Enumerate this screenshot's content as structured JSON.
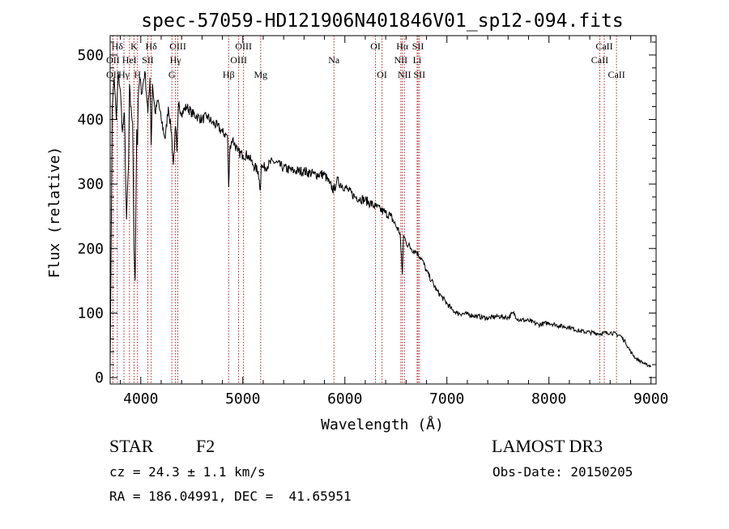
{
  "chart_data": {
    "type": "line",
    "title": "spec-57059-HD121906N401846V01_sp12-094.fits",
    "xlabel": "Wavelength (Å)",
    "ylabel": "Flux (relative)",
    "xlim": [
      3700,
      9050
    ],
    "ylim": [
      -10,
      530
    ],
    "xticks": [
      4000,
      5000,
      6000,
      7000,
      8000,
      9000
    ],
    "yticks": [
      0,
      100,
      200,
      300,
      400,
      500
    ],
    "grid": false,
    "series": [
      {
        "name": "flux",
        "x": [
          3700,
          3720,
          3740,
          3760,
          3780,
          3800,
          3820,
          3840,
          3860,
          3880,
          3890,
          3900,
          3920,
          3934,
          3945,
          3960,
          3968,
          3975,
          3990,
          4010,
          4040,
          4070,
          4090,
          4102,
          4115,
          4140,
          4170,
          4200,
          4240,
          4270,
          4300,
          4320,
          4340,
          4355,
          4370,
          4400,
          4450,
          4500,
          4550,
          4600,
          4650,
          4700,
          4750,
          4800,
          4850,
          4861,
          4875,
          4900,
          4950,
          5000,
          5050,
          5100,
          5150,
          5172,
          5180,
          5200,
          5300,
          5400,
          5500,
          5600,
          5700,
          5800,
          5850,
          5893,
          5920,
          6000,
          6100,
          6200,
          6300,
          6400,
          6450,
          6500,
          6540,
          6563,
          6575,
          6600,
          6650,
          6700,
          6750,
          6800,
          6850,
          6900,
          6950,
          7000,
          7050,
          7100,
          7200,
          7300,
          7400,
          7500,
          7600,
          7650,
          7700,
          7800,
          7900,
          8000,
          8100,
          8200,
          8300,
          8400,
          8500,
          8600,
          8700,
          8750,
          8800,
          8850,
          8900,
          8950,
          9000
        ],
        "values": [
          10,
          420,
          465,
          400,
          470,
          445,
          380,
          410,
          245,
          330,
          455,
          420,
          395,
          200,
          150,
          385,
          360,
          430,
          465,
          440,
          475,
          410,
          465,
          360,
          455,
          410,
          430,
          400,
          370,
          420,
          380,
          330,
          390,
          350,
          425,
          410,
          420,
          410,
          405,
          400,
          405,
          395,
          390,
          380,
          375,
          295,
          360,
          370,
          350,
          345,
          345,
          330,
          320,
          290,
          330,
          325,
          335,
          325,
          320,
          320,
          315,
          315,
          300,
          290,
          305,
          295,
          280,
          275,
          265,
          255,
          250,
          235,
          225,
          160,
          220,
          210,
          200,
          195,
          185,
          165,
          150,
          135,
          125,
          115,
          105,
          100,
          98,
          95,
          92,
          95,
          93,
          100,
          90,
          88,
          82,
          85,
          80,
          78,
          72,
          70,
          68,
          70,
          65,
          55,
          40,
          30,
          25,
          20,
          18
        ]
      }
    ],
    "line_color": "#000000",
    "marker_color": "#b22222",
    "line_markers": [
      {
        "label": "Hδ",
        "x": 3770,
        "row": 1
      },
      {
        "label": "OII",
        "x": 3727,
        "row": 2
      },
      {
        "label": "OII",
        "x": 3727,
        "row": 3
      },
      {
        "label": "K",
        "x": 3934,
        "row": 1
      },
      {
        "label": "HeI",
        "x": 3889,
        "row": 2
      },
      {
        "label": "Hγ",
        "x": 3835,
        "row": 3
      },
      {
        "label": "SII",
        "x": 4069,
        "row": 2
      },
      {
        "label": "H",
        "x": 3968,
        "row": 3
      },
      {
        "label": "Hδ",
        "x": 4102,
        "row": 1
      },
      {
        "label": "OIII",
        "x": 4363,
        "row": 1
      },
      {
        "label": "Hγ",
        "x": 4340,
        "row": 2
      },
      {
        "label": "G",
        "x": 4305,
        "row": 3
      },
      {
        "label": "Hβ",
        "x": 4861,
        "row": 3
      },
      {
        "label": "OIII",
        "x": 5007,
        "row": 1
      },
      {
        "label": "OIII",
        "x": 4959,
        "row": 2
      },
      {
        "label": "Mg",
        "x": 5175,
        "row": 3
      },
      {
        "label": "Na",
        "x": 5893,
        "row": 2
      },
      {
        "label": "OI",
        "x": 6300,
        "row": 1
      },
      {
        "label": "OI",
        "x": 6364,
        "row": 3
      },
      {
        "label": "Hα",
        "x": 6563,
        "row": 1
      },
      {
        "label": "SII",
        "x": 6717,
        "row": 1
      },
      {
        "label": "NII",
        "x": 6548,
        "row": 2
      },
      {
        "label": "Li",
        "x": 6708,
        "row": 2
      },
      {
        "label": "NII",
        "x": 6583,
        "row": 3
      },
      {
        "label": "SII",
        "x": 6731,
        "row": 3
      },
      {
        "label": "CaII",
        "x": 8542,
        "row": 1
      },
      {
        "label": "CaII",
        "x": 8498,
        "row": 2
      },
      {
        "label": "CaII",
        "x": 8662,
        "row": 3
      }
    ]
  },
  "info": {
    "object_type": "STAR",
    "subclass": "F2",
    "survey": "LAMOST DR3",
    "velocity": "cz = 24.3 ± 1.1 km/s",
    "obs_date": "Obs-Date: 20150205",
    "coords": "RA = 186.04991, DEC =  41.65951"
  }
}
